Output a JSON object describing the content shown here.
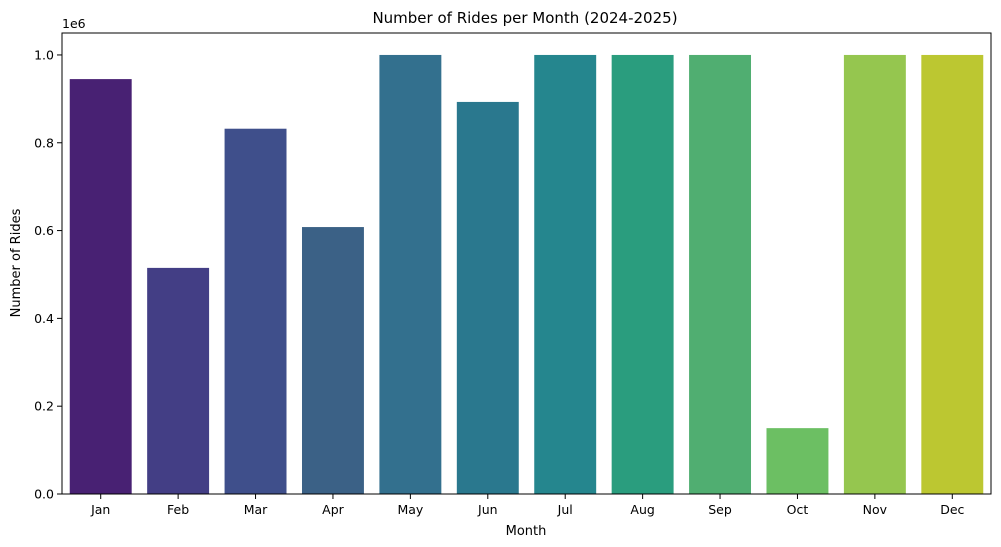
{
  "chart_data": {
    "type": "bar",
    "title": "Number of Rides per Month (2024-2025)",
    "xlabel": "Month",
    "ylabel": "Number of Rides",
    "y_offset_label": "1e6",
    "categories": [
      "Jan",
      "Feb",
      "Mar",
      "Apr",
      "May",
      "Jun",
      "Jul",
      "Aug",
      "Sep",
      "Oct",
      "Nov",
      "Dec"
    ],
    "values": [
      945000,
      515000,
      832000,
      608000,
      1000000,
      893000,
      1000000,
      1000000,
      1000000,
      150000,
      1000000,
      1000000
    ],
    "colors": [
      "#482173",
      "#433e85",
      "#3f4f8b",
      "#3b6186",
      "#33708e",
      "#2a788e",
      "#25868e",
      "#2a9d7e",
      "#50ae71",
      "#6cbf63",
      "#95c64f",
      "#bcc731"
    ],
    "ylim": [
      0,
      1050000
    ],
    "y_ticks": [
      0,
      200000,
      400000,
      600000,
      800000,
      1000000
    ],
    "y_tick_labels": [
      "0.0",
      "0.2",
      "0.4",
      "0.6",
      "0.8",
      "1.0"
    ],
    "grid": false,
    "legend": "none"
  }
}
